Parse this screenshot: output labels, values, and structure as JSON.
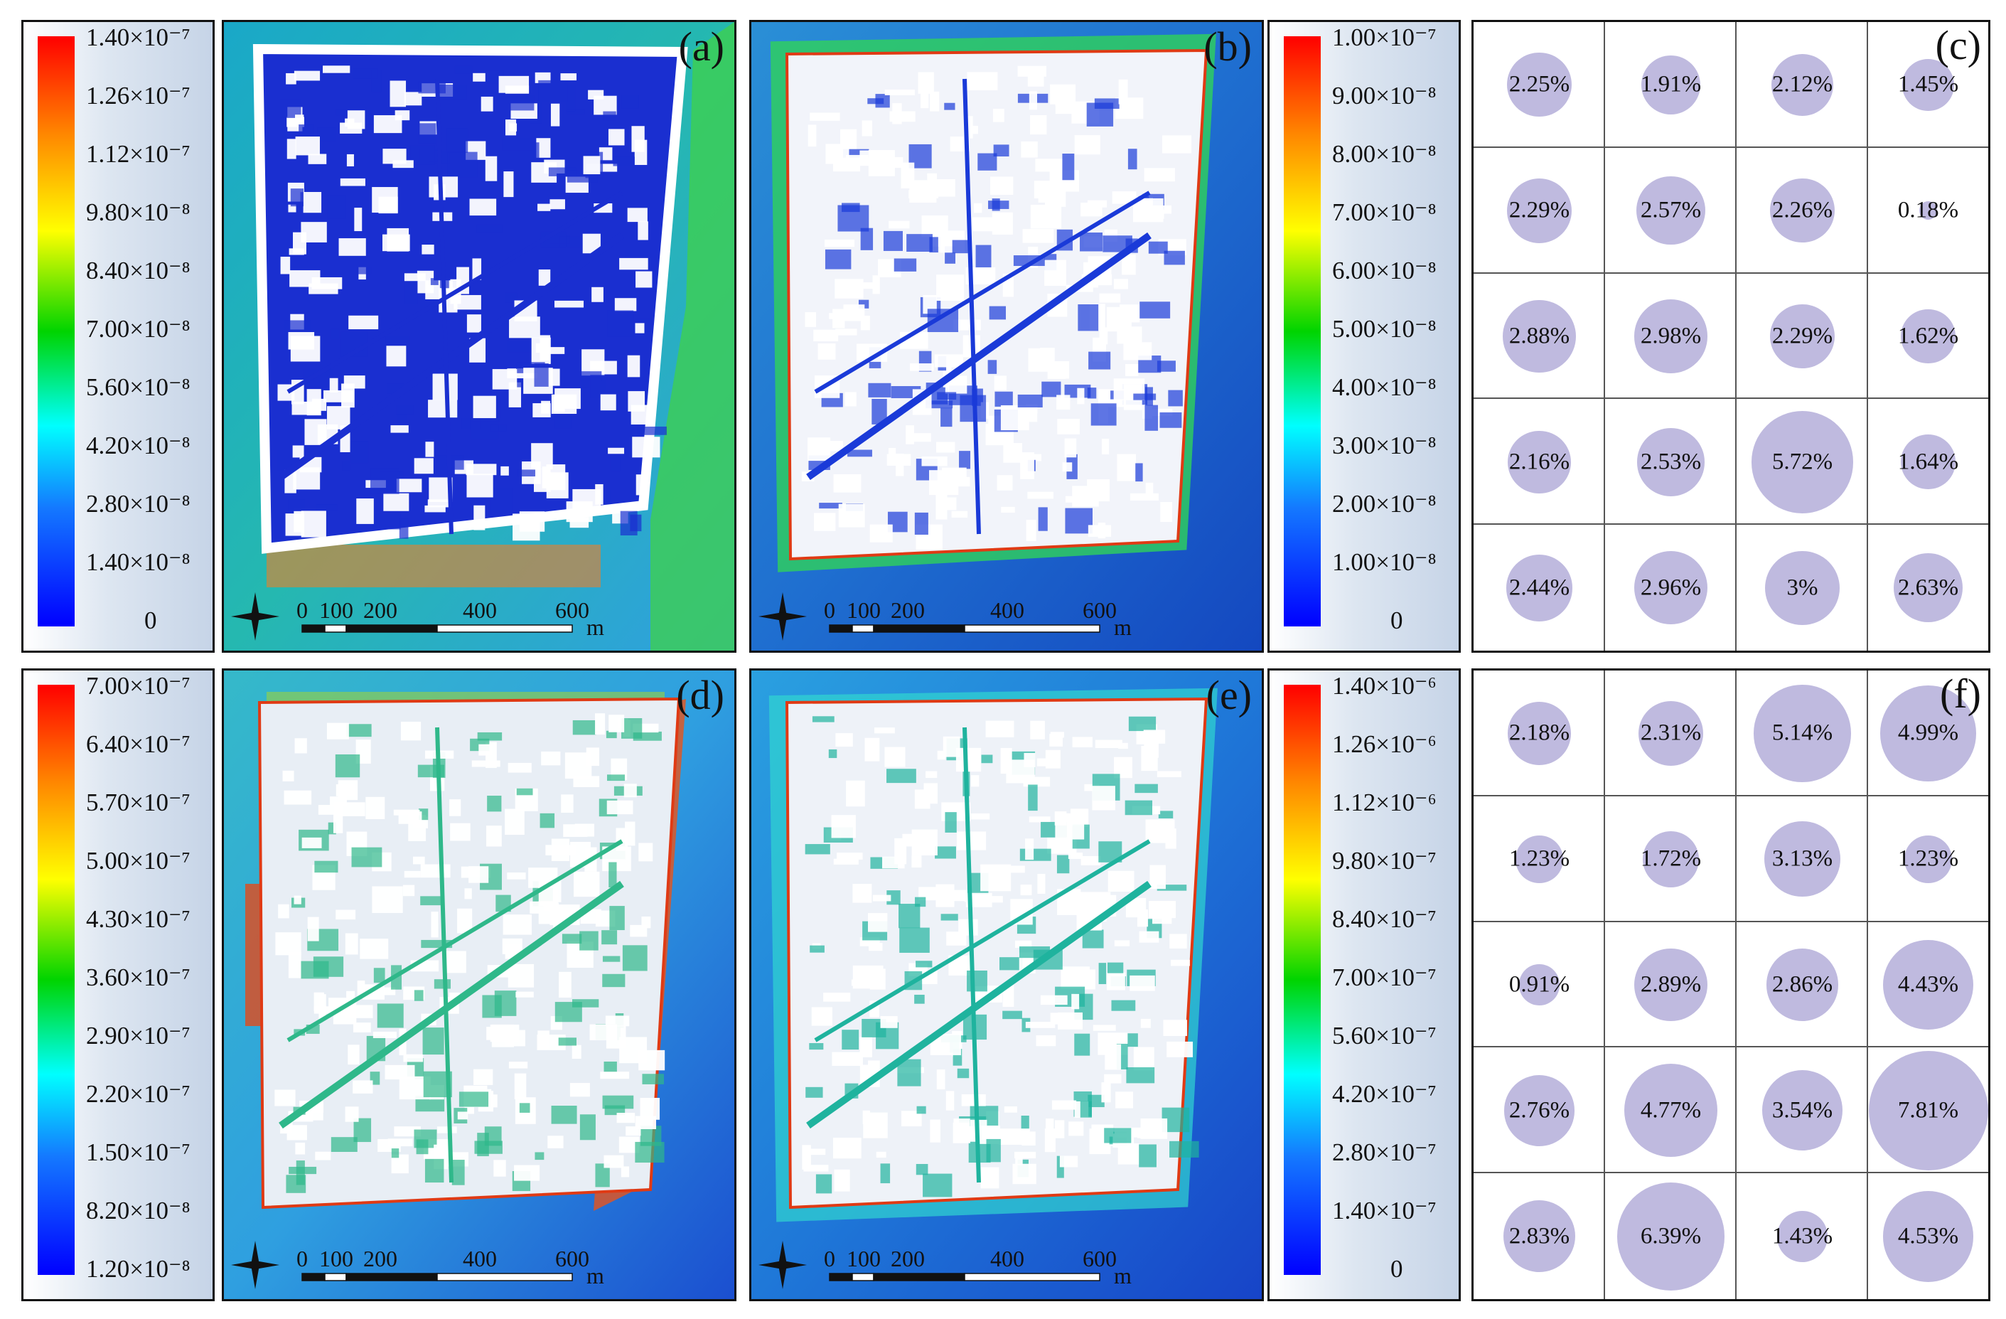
{
  "legends": [
    {
      "ticks": [
        "1.40×10⁻⁷",
        "1.26×10⁻⁷",
        "1.12×10⁻⁷",
        "9.80×10⁻⁸",
        "8.40×10⁻⁸",
        "7.00×10⁻⁸",
        "5.60×10⁻⁸",
        "4.20×10⁻⁸",
        "2.80×10⁻⁸",
        "1.40×10⁻⁸",
        "0"
      ]
    },
    {
      "ticks": [
        "1.00×10⁻⁷",
        "9.00×10⁻⁸",
        "8.00×10⁻⁸",
        "7.00×10⁻⁸",
        "6.00×10⁻⁸",
        "5.00×10⁻⁸",
        "4.00×10⁻⁸",
        "3.00×10⁻⁸",
        "2.00×10⁻⁸",
        "1.00×10⁻⁸",
        "0"
      ]
    },
    {
      "ticks": [
        "7.00×10⁻⁷",
        "6.40×10⁻⁷",
        "5.70×10⁻⁷",
        "5.00×10⁻⁷",
        "4.30×10⁻⁷",
        "3.60×10⁻⁷",
        "2.90×10⁻⁷",
        "2.20×10⁻⁷",
        "1.50×10⁻⁷",
        "8.20×10⁻⁸",
        "1.20×10⁻⁸"
      ]
    },
    {
      "ticks": [
        "1.40×10⁻⁶",
        "1.26×10⁻⁶",
        "1.12×10⁻⁶",
        "9.80×10⁻⁷",
        "8.40×10⁻⁷",
        "7.00×10⁻⁷",
        "5.60×10⁻⁷",
        "4.20×10⁻⁷",
        "2.80×10⁻⁷",
        "1.40×10⁻⁷",
        "0"
      ]
    }
  ],
  "maps": [
    {
      "label": "(a)",
      "scale": [
        "0",
        "100",
        "200",
        "400",
        "600"
      ],
      "unit": "m"
    },
    {
      "label": "(b)",
      "scale": [
        "0",
        "100",
        "200",
        "400",
        "600"
      ],
      "unit": "m"
    },
    {
      "label": "(d)",
      "scale": [
        "0",
        "100",
        "200",
        "400",
        "600"
      ],
      "unit": "m"
    },
    {
      "label": "(e)",
      "scale": [
        "0",
        "100",
        "200",
        "400",
        "600"
      ],
      "unit": "m"
    }
  ],
  "chart_data": [
    {
      "type": "bubble-grid",
      "title": "(c)",
      "rows": 5,
      "cols": 4,
      "values": [
        [
          2.25,
          1.91,
          2.12,
          1.45
        ],
        [
          2.29,
          2.57,
          2.26,
          0.18
        ],
        [
          2.88,
          2.98,
          2.29,
          1.62
        ],
        [
          2.16,
          2.53,
          5.72,
          1.64
        ],
        [
          2.44,
          2.96,
          3,
          2.63
        ]
      ],
      "labels": [
        [
          "2.25%",
          "1.91%",
          "2.12%",
          "1.45%"
        ],
        [
          "2.29%",
          "2.57%",
          "2.26%",
          "0.18%"
        ],
        [
          "2.88%",
          "2.98%",
          "2.29%",
          "1.62%"
        ],
        [
          "2.16%",
          "2.53%",
          "5.72%",
          "1.64%"
        ],
        [
          "2.44%",
          "2.96%",
          "3%",
          "2.63%"
        ]
      ]
    },
    {
      "type": "bubble-grid",
      "title": "(f)",
      "rows": 5,
      "cols": 4,
      "values": [
        [
          2.18,
          2.31,
          5.14,
          4.99
        ],
        [
          1.23,
          1.72,
          3.13,
          1.23
        ],
        [
          0.91,
          2.89,
          2.86,
          4.43
        ],
        [
          2.76,
          4.77,
          3.54,
          7.81
        ],
        [
          2.83,
          6.39,
          1.43,
          4.53
        ]
      ],
      "labels": [
        [
          "2.18%",
          "2.31%",
          "5.14%",
          "4.99%"
        ],
        [
          "1.23%",
          "1.72%",
          "3.13%",
          "1.23%"
        ],
        [
          "0.91%",
          "2.89%",
          "2.86%",
          "4.43%"
        ],
        [
          "2.76%",
          "4.77%",
          "3.54%",
          "7.81%"
        ],
        [
          "2.83%",
          "6.39%",
          "1.43%",
          "4.53%"
        ]
      ]
    }
  ],
  "colors": {
    "bubble": "#b8b3db",
    "colorbar_top": "#ff0000",
    "colorbar_bottom": "#0000ff"
  }
}
